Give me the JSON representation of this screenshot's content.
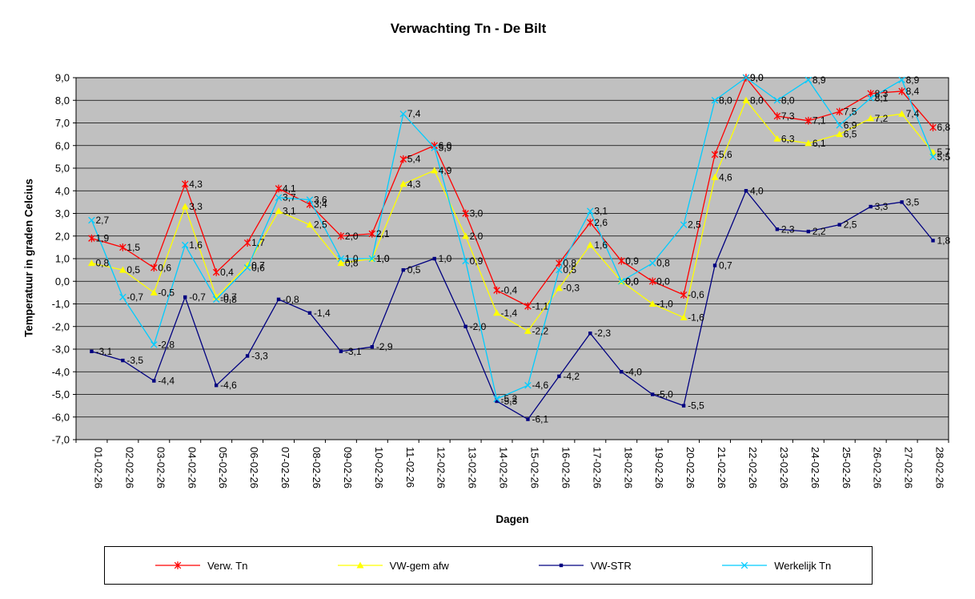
{
  "chart_data": {
    "type": "line",
    "title": "Verwachting Tn - De Bilt",
    "xlabel": "Dagen",
    "ylabel": "Temperatuur in graden Celcius",
    "ylim": [
      -7,
      9
    ],
    "ytick_step": 1,
    "grid": true,
    "plot_bg": "#C0C0C0",
    "gridline_color": "#000000",
    "legend_position": "bottom",
    "data_labels": true,
    "decimal_comma": true,
    "categories": [
      "01-02-26",
      "02-02-26",
      "03-02-26",
      "04-02-26",
      "05-02-26",
      "06-02-26",
      "07-02-26",
      "08-02-26",
      "09-02-26",
      "10-02-26",
      "11-02-26",
      "12-02-26",
      "13-02-26",
      "14-02-26",
      "15-02-26",
      "16-02-26",
      "17-02-26",
      "18-02-26",
      "19-02-26",
      "20-02-26",
      "21-02-26",
      "22-02-26",
      "23-02-26",
      "24-02-26",
      "25-02-26",
      "26-02-26",
      "27-02-26",
      "28-02-26"
    ],
    "series": [
      {
        "name": "Verw. Tn",
        "color": "#FF0000",
        "marker": "star",
        "values": [
          1.9,
          1.5,
          0.6,
          4.3,
          0.4,
          1.7,
          4.1,
          3.4,
          2.0,
          2.1,
          5.4,
          6.0,
          3.0,
          -0.4,
          -1.1,
          0.8,
          2.6,
          0.9,
          0.0,
          -0.6,
          5.6,
          9.0,
          7.3,
          7.1,
          7.5,
          8.3,
          8.4,
          6.8
        ]
      },
      {
        "name": "VW-gem afw",
        "color": "#FFFF00",
        "marker": "triangle",
        "values": [
          0.8,
          0.5,
          -0.5,
          3.3,
          -0.7,
          0.7,
          3.1,
          2.5,
          0.8,
          1.0,
          4.3,
          4.9,
          2.0,
          -1.4,
          -2.2,
          -0.3,
          1.6,
          0.0,
          -1.0,
          -1.6,
          4.6,
          8.0,
          6.3,
          6.1,
          6.5,
          7.2,
          7.4,
          5.7
        ]
      },
      {
        "name": "VW-STR",
        "color": "#000080",
        "marker": "square",
        "values": [
          -3.1,
          -3.5,
          -4.4,
          -0.7,
          -4.6,
          -3.3,
          -0.8,
          -1.4,
          -3.1,
          -2.9,
          0.5,
          1.0,
          -2.0,
          -5.3,
          -6.1,
          -4.2,
          -2.3,
          -4.0,
          -5.0,
          -5.5,
          0.7,
          4.0,
          2.3,
          2.2,
          2.5,
          3.3,
          3.5,
          1.8
        ]
      },
      {
        "name": "Werkelijk Tn",
        "color": "#00CCFF",
        "marker": "x",
        "values": [
          2.7,
          -0.7,
          -2.8,
          1.6,
          -0.8,
          0.6,
          3.7,
          3.6,
          1.0,
          1.0,
          7.4,
          5.9,
          0.9,
          -5.2,
          -4.6,
          0.5,
          3.1,
          0.0,
          0.8,
          2.5,
          8.0,
          9.0,
          8.0,
          8.9,
          6.9,
          8.1,
          8.9,
          5.5
        ]
      }
    ]
  }
}
